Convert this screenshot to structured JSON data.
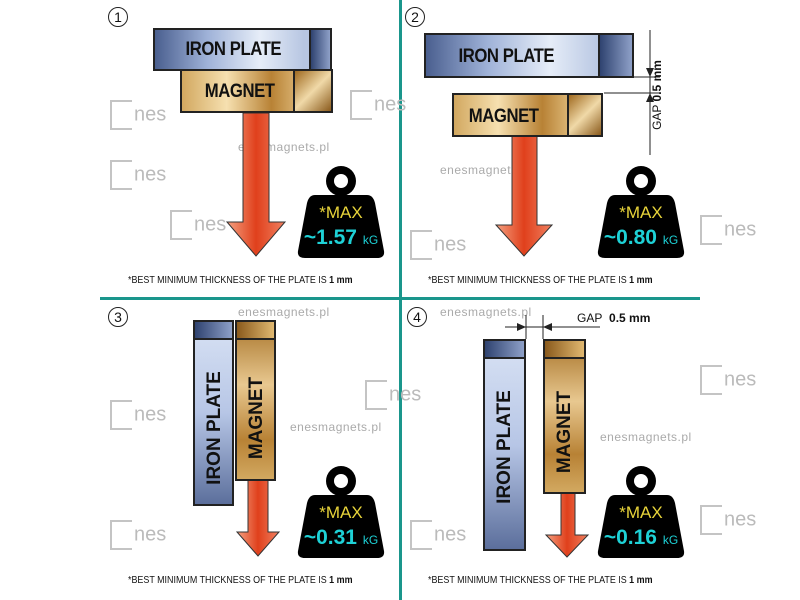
{
  "panels": [
    {
      "number": "1",
      "iron_label": "IRON PLATE",
      "magnet_label": "MAGNET",
      "max_label": "*MAX",
      "force": "~1.57",
      "unit": "kG",
      "footnote": "*BEST MINIMUM THICKNESS OF THE PLATE IS",
      "footnote_bold": "1 mm"
    },
    {
      "number": "2",
      "iron_label": "IRON PLATE",
      "magnet_label": "MAGNET",
      "max_label": "*MAX",
      "force": "~0.80",
      "unit": "kG",
      "footnote": "*BEST MINIMUM THICKNESS OF THE PLATE IS",
      "footnote_bold": "1 mm",
      "gap_label": "GAP",
      "gap_value": "0.5 mm"
    },
    {
      "number": "3",
      "iron_label": "IRON  PLATE",
      "magnet_label": "MAGNET",
      "max_label": "*MAX",
      "force": "~0.31",
      "unit": "kG",
      "footnote": "*BEST MINIMUM THICKNESS OF THE PLATE IS",
      "footnote_bold": "1 mm"
    },
    {
      "number": "4",
      "iron_label": "IRON PLATE",
      "magnet_label": "MAGNET",
      "max_label": "*MAX",
      "force": "~0.16",
      "unit": "kG",
      "footnote": "*BEST MINIMUM THICKNESS OF THE PLATE IS",
      "footnote_bold": "1 mm",
      "gap_label": "GAP",
      "gap_value": "0.5 mm"
    }
  ],
  "watermark": {
    "site": "enesmagnets.pl",
    "logo": "nes"
  },
  "colors": {
    "divider": "#1a968c",
    "max": "#e8d43a",
    "force": "#1ed1d6",
    "arrow": "#e0401c"
  }
}
